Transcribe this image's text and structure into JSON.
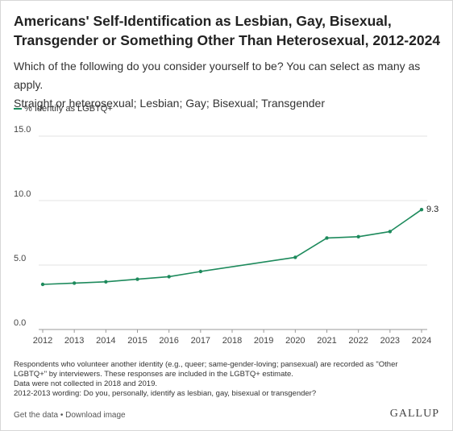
{
  "header": {
    "title": "Americans' Self-Identification as Lesbian, Gay, Bisexual, Transgender or Something Other Than Heterosexual, 2012-2024",
    "question": "Which of the following do you consider yourself to be? You can select as many as apply.",
    "options": "Straight or heterosexual; Lesbian; Gay; Bisexual; Transgender"
  },
  "legend": {
    "label": "% Identify as LGBTQ+"
  },
  "colors": {
    "series": "#1d8a5c",
    "grid": "#e3e3e3",
    "axis": "#999999"
  },
  "chart_data": {
    "type": "line",
    "x": [
      "2012",
      "2013",
      "2014",
      "2015",
      "2016",
      "2017",
      "2018",
      "2019",
      "2020",
      "2021",
      "2022",
      "2023",
      "2024"
    ],
    "series": [
      {
        "name": "% Identify as LGBTQ+",
        "points": [
          {
            "x": "2012",
            "y": 3.5
          },
          {
            "x": "2013",
            "y": 3.6
          },
          {
            "x": "2014",
            "y": 3.7
          },
          {
            "x": "2015",
            "y": 3.9
          },
          {
            "x": "2016",
            "y": 4.1
          },
          {
            "x": "2017",
            "y": 4.5
          },
          {
            "x": "2020",
            "y": 5.6
          },
          {
            "x": "2021",
            "y": 7.1
          },
          {
            "x": "2022",
            "y": 7.2
          },
          {
            "x": "2023",
            "y": 7.6
          },
          {
            "x": "2024",
            "y": 9.3
          }
        ]
      }
    ],
    "ylim": [
      0,
      15
    ],
    "yticks": [
      "0.0",
      "5.0",
      "10.0",
      "15.0"
    ],
    "data_labels": [
      {
        "x": "2024",
        "text": "9.3"
      }
    ],
    "grid": true,
    "legend_position": "top-left"
  },
  "notes": [
    "Respondents who volunteer another identity (e.g., queer; same-gender-loving; pansexual) are recorded as \"Other",
    "LGBTQ+\" by interviewers. These responses are included in the LGBTQ+ estimate.",
    "Data were not collected in 2018 and 2019.",
    "2012-2013 wording: Do you, personally, identify as lesbian, gay, bisexual or transgender?"
  ],
  "footer": {
    "get_data": "Get the data",
    "separator": " • ",
    "download": "Download image",
    "brand": "GALLUP"
  }
}
